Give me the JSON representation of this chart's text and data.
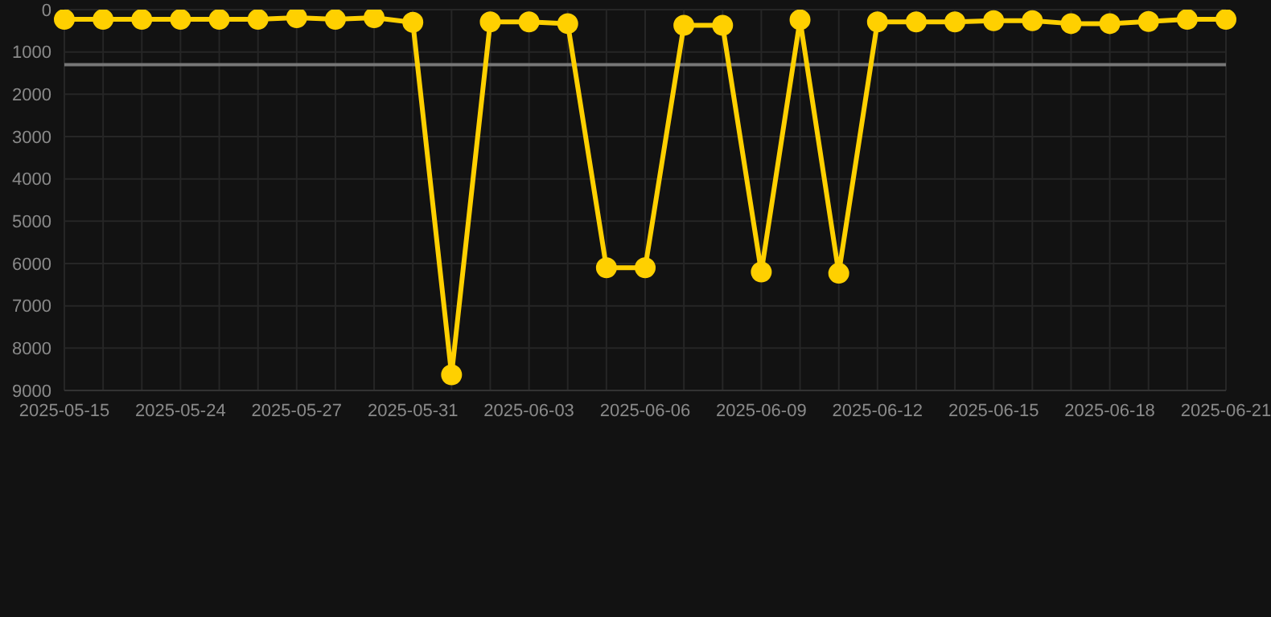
{
  "chart_data": {
    "type": "line",
    "categories": [
      "2025-05-15",
      null,
      null,
      "2025-05-24",
      null,
      null,
      "2025-05-27",
      null,
      null,
      "2025-05-31",
      null,
      null,
      "2025-06-03",
      null,
      null,
      "2025-06-06",
      null,
      null,
      "2025-06-09",
      null,
      null,
      "2025-06-12",
      null,
      null,
      "2025-06-15",
      null,
      null,
      "2025-06-18",
      null,
      null,
      "2025-06-21"
    ],
    "series": [
      {
        "color": "#ffd000",
        "values": [
          230,
          230,
          230,
          230,
          230,
          230,
          190,
          230,
          190,
          300,
          8630,
          290,
          290,
          330,
          6100,
          6100,
          370,
          370,
          6200,
          240,
          6230,
          290,
          290,
          290,
          260,
          260,
          330,
          330,
          280,
          230,
          230
        ]
      }
    ],
    "ylim": [
      9000,
      0
    ],
    "yticks": [
      0,
      1000,
      2000,
      3000,
      4000,
      5000,
      6000,
      7000,
      8000,
      9000
    ],
    "ref_lines": [
      {
        "axis": "y",
        "value": 1300,
        "color": "#777777"
      }
    ],
    "grid": true,
    "legend": false,
    "marker": "circle",
    "line_style": "solid"
  }
}
